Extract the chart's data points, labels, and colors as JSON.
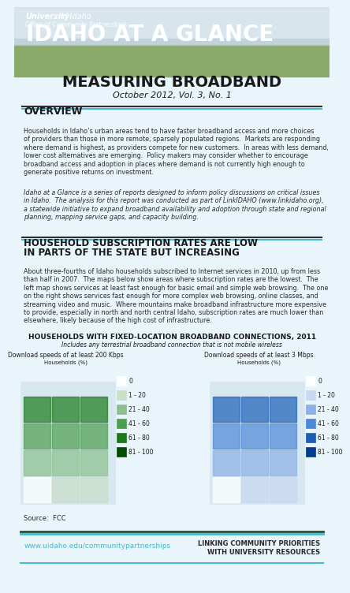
{
  "bg_color": "#eaf4fb",
  "header_bg": "#b0c8d8",
  "title_main": "IDAHO AT A GLANCE",
  "title_sub": "MEASURING BROADBAND",
  "title_date": "October 2012, Vol. 3, No. 1",
  "univ_line1": "University",
  "univ_line2": "of Idaho",
  "univ_line3": "Office of Community Partnerships",
  "section1_head": "OVERVIEW",
  "section1_body1": "Households in Idaho’s urban areas tend to have faster broadband access and more choices\nof providers than those in more remote, sparsely populated regions.  Markets are responding\nwhere demand is highest, as providers compete for new customers.  In areas with less demand,\nlower cost alternatives are emerging.  Policy makers may consider whether to encourage\nbroadband access and adoption in places where demand is not currently high enough to\ngenerate positive returns on investment.",
  "section1_body2": "Idaho at a Glance is a series of reports designed to inform policy discussions on critical issues\nin Idaho.  The analysis for this report was conducted as part of LinkIDAHO (www.linkidaho.org),\na statewide initiative to expand broadband availability and adoption through state and regional\nplanning, mapping service gaps, and capacity building.",
  "section2_head1": "HOUSEHOLD SUBSCRIPTION RATES ARE LOW",
  "section2_head2": "IN PARTS OF THE STATE BUT INCREASING",
  "section2_body": "About three-fourths of Idaho households subscribed to Internet services in 2010, up from less\nthan half in 2007.  The maps below show areas where subscription rates are the lowest.  The\nleft map shows services at least fast enough for basic email and simple web browsing.  The one\non the right shows services fast enough for more complex web browsing, online classes, and\nstreaming video and music.  Where mountains make broadband infrastructure more expensive\nto provide, especially in north and north central Idaho, subscription rates are much lower than\nelsewhere, likely because of the high cost of infrastructure.",
  "map_section_head": "HOUSEHOLDS WITH FIXED-LOCATION BROADBAND CONNECTIONS, 2011",
  "map_section_sub": "Includes any terrestrial broadband connection that is not mobile wireless",
  "map_left_title": "Download speeds of at least 200 Kbps",
  "map_right_title": "Download speeds of at least 3 Mbps",
  "map_ylabel": "Households (%)",
  "legend_labels": [
    "0",
    "1 - 20",
    "21 - 40",
    "41 - 60",
    "61 - 80",
    "81 - 100"
  ],
  "legend_colors_left": [
    "#ffffff",
    "#c8dfc8",
    "#8cbf8c",
    "#4d9e4d",
    "#1a7a1a",
    "#004d00"
  ],
  "legend_colors_right": [
    "#ffffff",
    "#c8d8f0",
    "#8cb0e8",
    "#4d88d8",
    "#1a5fb8",
    "#003d8c"
  ],
  "source_text": "Source:  FCC",
  "footer_left": "www.uidaho.edu/communitypartnerships",
  "footer_right": "LINKING COMMUNITY PRIORITIES\nWITH UNIVERSITY RESOURCES",
  "footer_line_color1": "#2e4d2e",
  "footer_line_color2": "#4ab8c8",
  "accent_color": "#4ab8c8",
  "dark_color": "#2e2e2e",
  "green_accent": "#5a8a3c"
}
